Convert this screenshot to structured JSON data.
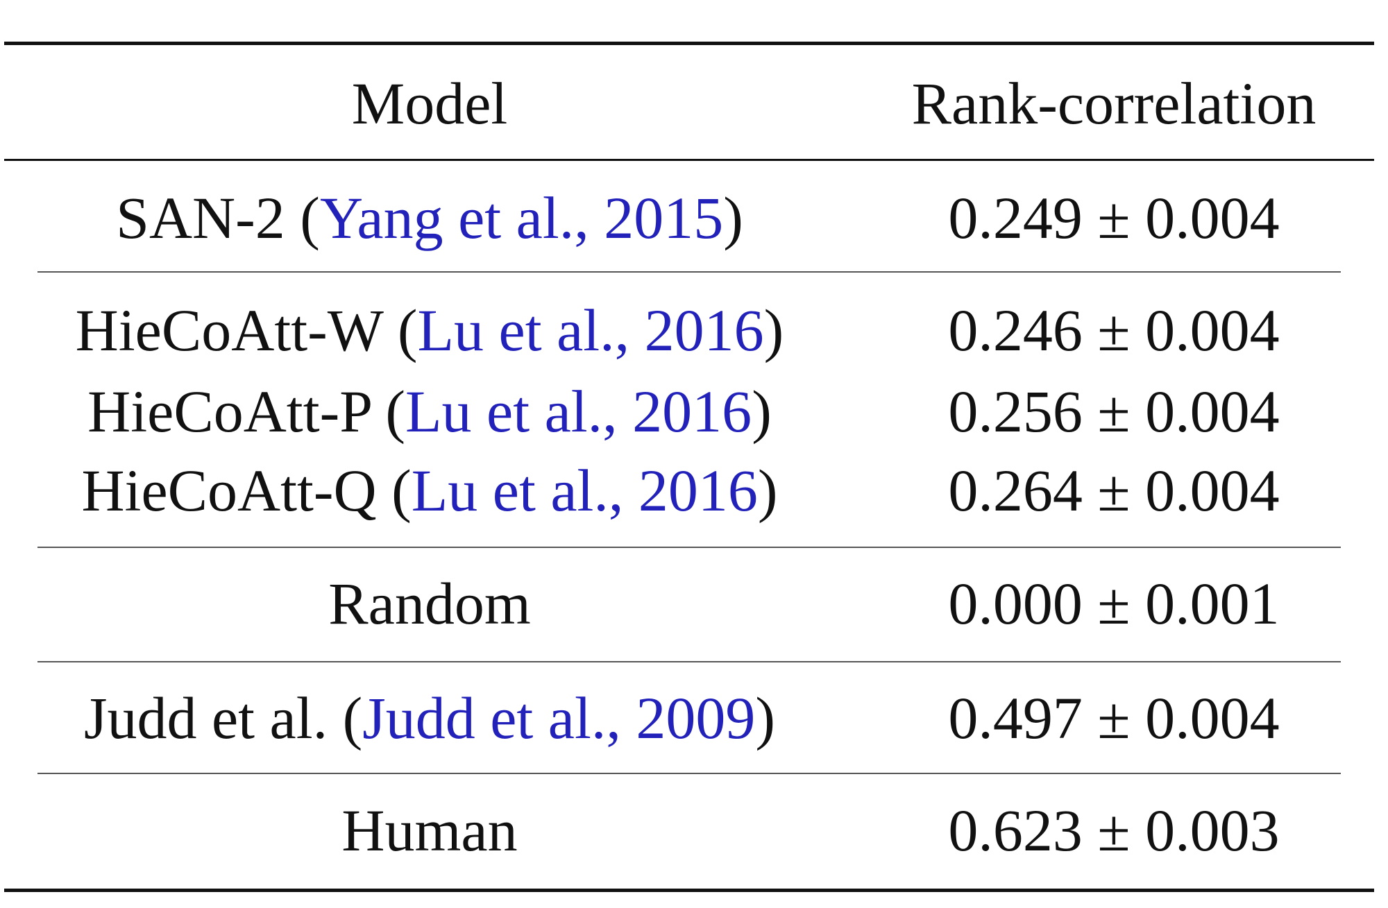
{
  "table": {
    "header": [
      "Model",
      "Rank-correlation"
    ],
    "rows": [
      {
        "model": "SAN-2 (",
        "citation": "Yang et al., 2015",
        "close": ")",
        "score": "0.249 ± 0.004"
      },
      {
        "model": "HieCoAtt-W (",
        "citation": "Lu et al., 2016",
        "close": ")",
        "score": "0.246 ± 0.004"
      },
      {
        "model": "HieCoAtt-P (",
        "citation": "Lu et al., 2016",
        "close": ")",
        "score": "0.256 ± 0.004"
      },
      {
        "model": "HieCoAtt-Q (",
        "citation": "Lu et al., 2016",
        "close": ")",
        "score": "0.264 ± 0.004"
      },
      {
        "model": "Random",
        "score": "0.000 ± 0.001"
      },
      {
        "model": "Judd et al. (",
        "citation": "Judd et al., 2009",
        "close": ")",
        "score": "0.497 ± 0.004"
      },
      {
        "model": "Human",
        "score": "0.623 ± 0.003"
      }
    ]
  }
}
